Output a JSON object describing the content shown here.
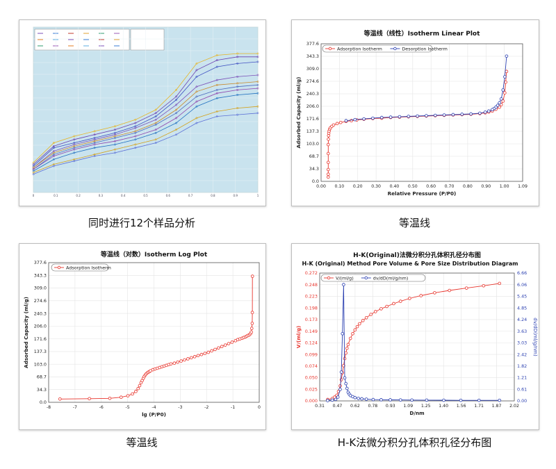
{
  "captions": {
    "p1": "同时进行12个样品分析",
    "p2": "等温线",
    "p3": "等温线",
    "p4": "H-K法微分积分孔体积孔径分布图"
  },
  "colors": {
    "red": "#e8342c",
    "blue": "#2a3fb0",
    "grid": "#e4e4e4",
    "thumbBg": "#c9e3ee"
  },
  "chart_data": [
    {
      "type": "line",
      "title": "",
      "legend": {
        "position": "top-left",
        "entries": [
          "",
          "",
          "",
          "",
          "",
          "",
          "",
          "",
          "",
          "",
          "",
          "",
          "",
          "",
          "",
          ""
        ]
      },
      "series": [
        {
          "values": [
            0.18,
            0.3,
            0.34,
            0.37,
            0.4,
            0.44,
            0.5,
            0.62,
            0.78,
            0.83,
            0.84,
            0.84
          ]
        },
        {
          "values": [
            0.17,
            0.28,
            0.32,
            0.35,
            0.38,
            0.42,
            0.48,
            0.58,
            0.74,
            0.8,
            0.82,
            0.82
          ]
        },
        {
          "values": [
            0.16,
            0.27,
            0.3,
            0.33,
            0.36,
            0.4,
            0.46,
            0.56,
            0.7,
            0.76,
            0.78,
            0.79
          ]
        },
        {
          "values": [
            0.15,
            0.25,
            0.29,
            0.32,
            0.35,
            0.39,
            0.44,
            0.53,
            0.64,
            0.68,
            0.7,
            0.71
          ]
        },
        {
          "values": [
            0.15,
            0.24,
            0.28,
            0.31,
            0.34,
            0.37,
            0.42,
            0.5,
            0.61,
            0.65,
            0.66,
            0.67
          ]
        },
        {
          "values": [
            0.14,
            0.23,
            0.27,
            0.3,
            0.33,
            0.36,
            0.41,
            0.48,
            0.58,
            0.62,
            0.64,
            0.65
          ]
        },
        {
          "values": [
            0.14,
            0.22,
            0.26,
            0.29,
            0.31,
            0.34,
            0.38,
            0.45,
            0.55,
            0.6,
            0.62,
            0.63
          ]
        },
        {
          "values": [
            0.13,
            0.2,
            0.24,
            0.27,
            0.29,
            0.32,
            0.36,
            0.42,
            0.52,
            0.57,
            0.59,
            0.6
          ]
        },
        {
          "values": [
            0.12,
            0.17,
            0.2,
            0.23,
            0.26,
            0.29,
            0.32,
            0.38,
            0.45,
            0.49,
            0.51,
            0.52
          ]
        },
        {
          "values": [
            0.11,
            0.16,
            0.19,
            0.22,
            0.24,
            0.27,
            0.3,
            0.35,
            0.42,
            0.46,
            0.47,
            0.48
          ]
        }
      ],
      "x_ticks": [
        "0",
        "0.1",
        "0.2",
        "0.3",
        "0.4",
        "0.5",
        "0.6",
        "0.7",
        "0.8",
        "0.9",
        "1"
      ],
      "grid": true
    },
    {
      "type": "line",
      "title": "等温线（线性）Isotherm Linear Plot",
      "xlabel": "Relative Pressure (P/P0)",
      "ylabel": "Adsorbed Capacity (ml/g)",
      "xlim": [
        -0.04,
        1.09
      ],
      "ylim": [
        -8,
        377.6
      ],
      "x_ticks": [
        "0.00",
        "0.10",
        "0.20",
        "0.30",
        "0.40",
        "0.50",
        "0.60",
        "0.70",
        "0.80",
        "0.90",
        "1.00",
        "1.09"
      ],
      "y_ticks": [
        "0.0",
        "34.3",
        "68.7",
        "103.0",
        "137.3",
        "171.6",
        "206.0",
        "240.3",
        "274.6",
        "309.0",
        "343.3",
        "377.6"
      ],
      "grid": true,
      "legend": {
        "position": "top",
        "entries": [
          "Adsorption Isotherm",
          "Desorption Isotherm"
        ]
      },
      "series": [
        {
          "name": "Adsorption Isotherm",
          "x": [
            0,
            0,
            0,
            0,
            0,
            0,
            0.001,
            0.002,
            0.003,
            0.005,
            0.008,
            0.012,
            0.02,
            0.03,
            0.05,
            0.07,
            0.1,
            0.13,
            0.16,
            0.2,
            0.25,
            0.3,
            0.35,
            0.4,
            0.45,
            0.5,
            0.55,
            0.6,
            0.65,
            0.7,
            0.75,
            0.8,
            0.85,
            0.88,
            0.9,
            0.92,
            0.94,
            0.96,
            0.97,
            0.98,
            0.99,
            0.995,
            1.0
          ],
          "y": [
            4,
            12,
            25,
            45,
            70,
            95,
            110,
            120,
            127,
            133,
            138,
            142,
            146,
            150,
            154,
            157,
            160,
            162,
            164,
            166,
            168,
            169,
            171,
            172,
            173,
            174,
            175,
            176,
            177,
            178,
            179,
            180,
            182,
            184,
            186,
            189,
            194,
            200,
            207,
            217,
            240,
            270,
            300
          ]
        },
        {
          "name": "Desorption Isotherm",
          "x": [
            1.0,
            0.99,
            0.98,
            0.97,
            0.96,
            0.95,
            0.94,
            0.93,
            0.92,
            0.9,
            0.88,
            0.85,
            0.8,
            0.75,
            0.7,
            0.65,
            0.6,
            0.55,
            0.5,
            0.45,
            0.4,
            0.35,
            0.3,
            0.25,
            0.2,
            0.15,
            0.1
          ],
          "y": [
            343,
            285,
            248,
            223,
            212,
            205,
            200,
            196,
            193,
            189,
            186,
            183,
            181,
            180,
            179,
            178,
            177,
            176,
            175,
            174,
            173,
            172,
            171,
            169,
            167,
            165,
            162
          ]
        }
      ]
    },
    {
      "type": "line",
      "title": "等温线（对数）Isotherm Log Plot",
      "xlabel": "lg (P/P0)",
      "ylabel": "Adsorbed Capacity (ml/g)",
      "xlim": [
        -9,
        0.3
      ],
      "ylim": [
        -8,
        377.6
      ],
      "x_ticks": [
        "-8",
        "-7",
        "-6",
        "-5",
        "-4",
        "-3",
        "-2",
        "-1",
        "0"
      ],
      "y_ticks": [
        "0.0",
        "34.3",
        "68.7",
        "103.0",
        "137.3",
        "171.6",
        "206.0",
        "240.3",
        "274.6",
        "309.0",
        "343.3",
        "377.6"
      ],
      "grid": true,
      "legend": {
        "position": "top-left",
        "entries": [
          "Adsorption Isotherm"
        ]
      },
      "series": [
        {
          "name": "Adsorption Isotherm",
          "x": [
            -8.5,
            -7.2,
            -6.3,
            -5.8,
            -5.5,
            -5.3,
            -5.15,
            -5.05,
            -4.98,
            -4.92,
            -4.87,
            -4.82,
            -4.78,
            -4.74,
            -4.7,
            -4.65,
            -4.6,
            -4.55,
            -4.5,
            -4.4,
            -4.3,
            -4.2,
            -4.1,
            -4.0,
            -3.9,
            -3.8,
            -3.7,
            -3.6,
            -3.45,
            -3.3,
            -3.15,
            -3.0,
            -2.85,
            -2.7,
            -2.55,
            -2.4,
            -2.25,
            -2.1,
            -1.95,
            -1.8,
            -1.65,
            -1.5,
            -1.35,
            -1.2,
            -1.05,
            -0.9,
            -0.75,
            -0.65,
            -0.55,
            -0.45,
            -0.38,
            -0.3,
            -0.24,
            -0.18,
            -0.12,
            -0.08,
            -0.05,
            -0.03,
            -0.01,
            -0.005,
            0
          ],
          "y": [
            1,
            2,
            3,
            6,
            10,
            15,
            22,
            30,
            38,
            46,
            52,
            58,
            63,
            67,
            70,
            73,
            75,
            77,
            79,
            82,
            84,
            86,
            88,
            90,
            92,
            94,
            96,
            98,
            100,
            103,
            106,
            109,
            112,
            115,
            118,
            121,
            124,
            127,
            130,
            134,
            138,
            142,
            146,
            150,
            154,
            158,
            162,
            165,
            167,
            169,
            171,
            173,
            175,
            177,
            179,
            182,
            186,
            196,
            210,
            240,
            340
          ]
        }
      ]
    },
    {
      "type": "line",
      "title": "H-K(Original)法微分积分孔体积孔径分布图",
      "subtitle": "H-K (Original) Method Pore Volume & Pore Size Distribution Diagram",
      "xlabel": "D/nm",
      "ylabel": "V/(ml/g)",
      "y2label": "dv/dD(ml/g/nm)",
      "xlim": [
        0.31,
        2.02
      ],
      "ylim": [
        0,
        0.272
      ],
      "y2lim": [
        0,
        6.66
      ],
      "x_ticks": [
        "0.31",
        "0.47",
        "0.62",
        "0.78",
        "0.93",
        "1.09",
        "1.25",
        "1.40",
        "1.56",
        "1.71",
        "1.87",
        "2.02"
      ],
      "y_ticks": [
        "0.000",
        "0.025",
        "0.050",
        "0.074",
        "0.099",
        "0.124",
        "0.149",
        "0.173",
        "0.198",
        "0.223",
        "0.248",
        "0.272"
      ],
      "y2_ticks": [
        "0.00",
        "0.61",
        "1.21",
        "1.82",
        "2.42",
        "3.03",
        "3.63",
        "4.24",
        "4.85",
        "5.45",
        "6.06",
        "6.66"
      ],
      "grid": true,
      "legend": {
        "position": "top-left",
        "entries": [
          "V/(ml/g)",
          "dv/dD(ml/g/nm)"
        ]
      },
      "series": [
        {
          "name": "V/(ml/g)",
          "axis": "left",
          "x": [
            0.38,
            0.42,
            0.44,
            0.46,
            0.475,
            0.49,
            0.5,
            0.51,
            0.52,
            0.53,
            0.54,
            0.55,
            0.56,
            0.58,
            0.6,
            0.62,
            0.64,
            0.66,
            0.69,
            0.72,
            0.76,
            0.8,
            0.85,
            0.9,
            0.96,
            1.02,
            1.1,
            1.2,
            1.32,
            1.45,
            1.6,
            1.75,
            1.89
          ],
          "y": [
            0.003,
            0.005,
            0.008,
            0.012,
            0.02,
            0.032,
            0.045,
            0.06,
            0.075,
            0.09,
            0.102,
            0.112,
            0.12,
            0.133,
            0.143,
            0.151,
            0.158,
            0.164,
            0.171,
            0.177,
            0.184,
            0.19,
            0.196,
            0.201,
            0.207,
            0.212,
            0.218,
            0.224,
            0.23,
            0.235,
            0.24,
            0.245,
            0.25
          ]
        },
        {
          "name": "dv/dD(ml/g/nm)",
          "axis": "right",
          "x": [
            0.38,
            0.42,
            0.45,
            0.47,
            0.49,
            0.5,
            0.51,
            0.52,
            0.53,
            0.54,
            0.55,
            0.56,
            0.57,
            0.58,
            0.6,
            0.62,
            0.65,
            0.68,
            0.72,
            0.78,
            0.85,
            0.93,
            1.02,
            1.12,
            1.25,
            1.4,
            1.55,
            1.71,
            1.89
          ],
          "y": [
            0.02,
            0.04,
            0.08,
            0.2,
            0.6,
            1.5,
            3.5,
            6.06,
            1.2,
            0.9,
            0.65,
            0.45,
            0.35,
            0.28,
            0.22,
            0.17,
            0.13,
            0.11,
            0.09,
            0.07,
            0.06,
            0.055,
            0.05,
            0.045,
            0.04,
            0.035,
            0.03,
            0.03,
            0.03
          ]
        }
      ]
    }
  ]
}
